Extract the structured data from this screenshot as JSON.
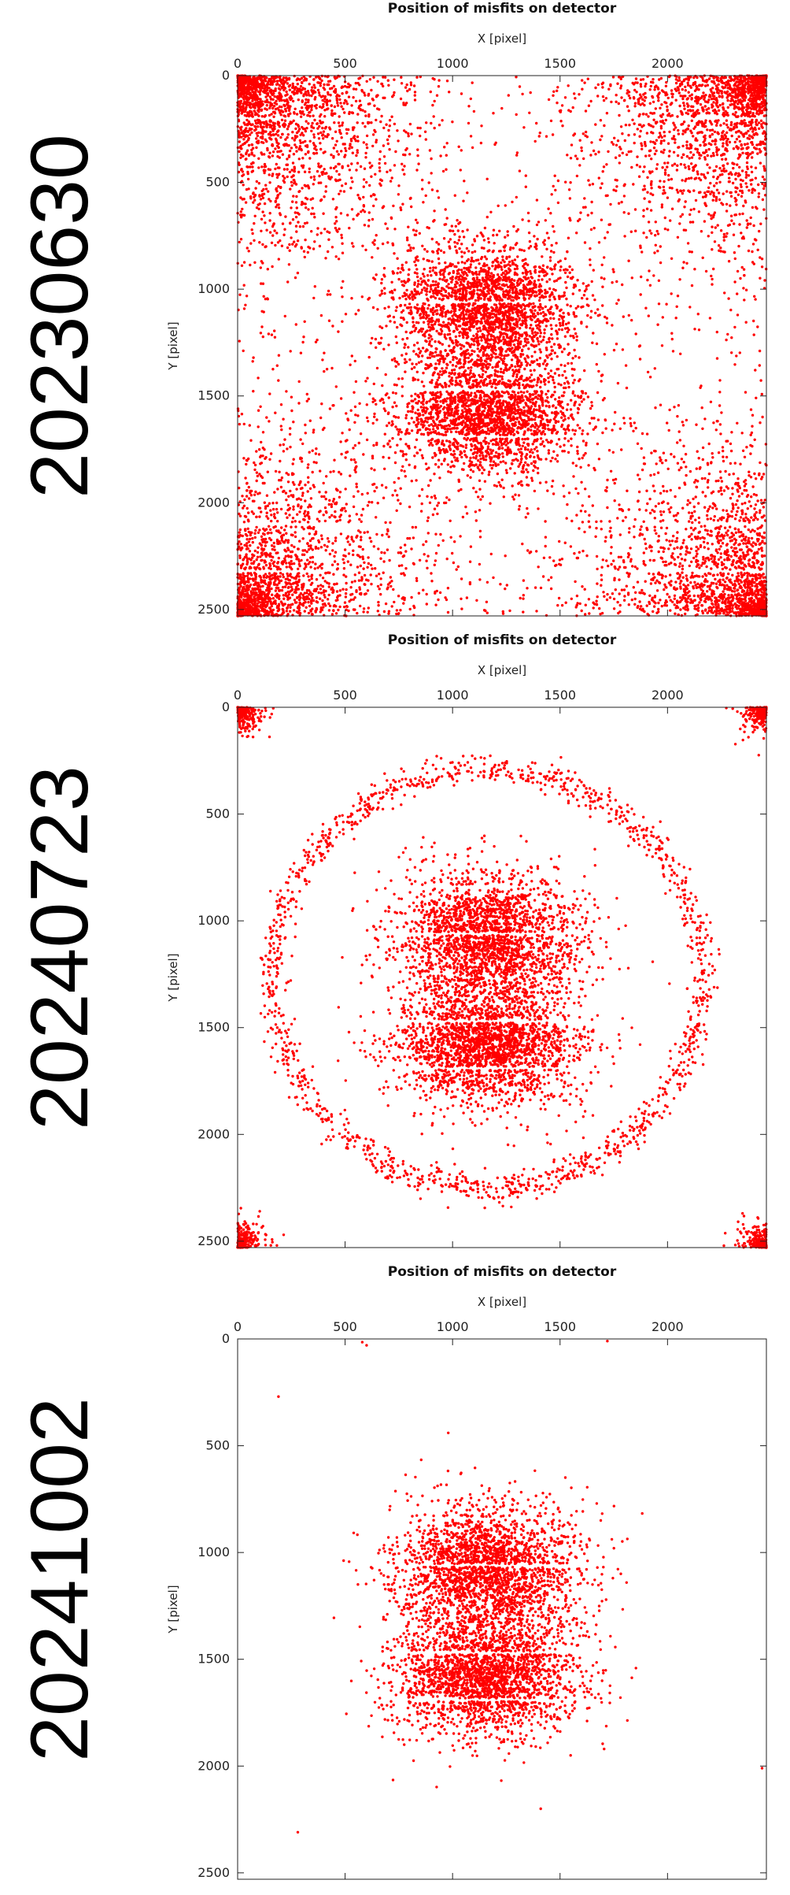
{
  "chart_data": [
    {
      "type": "scatter",
      "date_label": "20230630",
      "title": "Position of misfits on detector",
      "xlabel": "X [pixel]",
      "ylabel": "Y [pixel]",
      "xlim": [
        0,
        2460
      ],
      "ylim": [
        0,
        2530
      ],
      "y_inverted": true,
      "x_axis_position": "top",
      "grid": false,
      "marker_color": "#ff0000",
      "xticks": [
        0,
        500,
        1000,
        1500,
        2000
      ],
      "yticks": [
        0,
        500,
        1000,
        1500,
        2000,
        2500
      ],
      "clusters": [
        {
          "shape": "ellipse",
          "cx": 1160,
          "cy": 1080,
          "rx": 500,
          "ry": 380,
          "density": "high"
        },
        {
          "shape": "ellipse",
          "cx": 1160,
          "cy": 1580,
          "rx": 500,
          "ry": 330,
          "density": "high"
        },
        {
          "shape": "corner",
          "corner": "top-left",
          "extent": 1250,
          "density": "high"
        },
        {
          "shape": "corner",
          "corner": "top-right",
          "extent": 1250,
          "density": "high"
        },
        {
          "shape": "corner",
          "corner": "bottom-left",
          "extent": 1250,
          "density": "high"
        },
        {
          "shape": "corner",
          "corner": "bottom-right",
          "extent": 1250,
          "density": "high"
        }
      ],
      "gaps_y": [
        200,
        400,
        840,
        1060,
        1470,
        1690,
        2100,
        2320
      ]
    },
    {
      "type": "scatter",
      "date_label": "20240723",
      "title": "Position of misfits on detector",
      "xlabel": "X [pixel]",
      "ylabel": "Y [pixel]",
      "xlim": [
        0,
        2460
      ],
      "ylim": [
        0,
        2530
      ],
      "y_inverted": true,
      "x_axis_position": "top",
      "grid": false,
      "marker_color": "#ff0000",
      "xticks": [
        0,
        500,
        1000,
        1500,
        2000
      ],
      "yticks": [
        0,
        500,
        1000,
        1500,
        2000,
        2500
      ],
      "clusters": [
        {
          "shape": "ellipse",
          "cx": 1160,
          "cy": 1080,
          "rx": 500,
          "ry": 380,
          "density": "high"
        },
        {
          "shape": "ellipse",
          "cx": 1160,
          "cy": 1580,
          "rx": 500,
          "ry": 330,
          "density": "high"
        },
        {
          "shape": "ring",
          "cx": 1160,
          "cy": 1270,
          "r": 1000,
          "width": 70,
          "density": "medium"
        },
        {
          "shape": "corner",
          "corner": "top-left",
          "extent": 150,
          "density": "low"
        },
        {
          "shape": "corner",
          "corner": "top-right",
          "extent": 150,
          "density": "low"
        },
        {
          "shape": "corner",
          "corner": "bottom-left",
          "extent": 150,
          "density": "low"
        },
        {
          "shape": "corner",
          "corner": "bottom-right",
          "extent": 150,
          "density": "low"
        }
      ],
      "gaps_y": [
        840,
        1060,
        1470,
        1690
      ]
    },
    {
      "type": "scatter",
      "date_label": "20241002",
      "title": "Position of misfits on detector",
      "xlabel": "X [pixel]",
      "ylabel": "Y [pixel]",
      "xlim": [
        0,
        2460
      ],
      "ylim": [
        0,
        2530
      ],
      "y_inverted": true,
      "x_axis_position": "top",
      "grid": false,
      "marker_color": "#ff0000",
      "xticks": [
        0,
        500,
        1000,
        1500,
        2000
      ],
      "yticks": [
        0,
        500,
        1000,
        1500,
        2000,
        2500
      ],
      "clusters": [
        {
          "shape": "ellipse",
          "cx": 1160,
          "cy": 1080,
          "rx": 500,
          "ry": 380,
          "density": "high"
        },
        {
          "shape": "ellipse",
          "cx": 1160,
          "cy": 1580,
          "rx": 500,
          "ry": 330,
          "density": "high"
        }
      ],
      "gaps_y": [
        840,
        1060,
        1470,
        1690
      ],
      "outliers": [
        [
          600,
          30
        ],
        [
          580,
          15
        ],
        [
          1720,
          10
        ],
        [
          190,
          270
        ],
        [
          280,
          2310
        ],
        [
          1410,
          2200
        ],
        [
          2440,
          2010
        ],
        [
          980,
          440
        ]
      ]
    }
  ]
}
